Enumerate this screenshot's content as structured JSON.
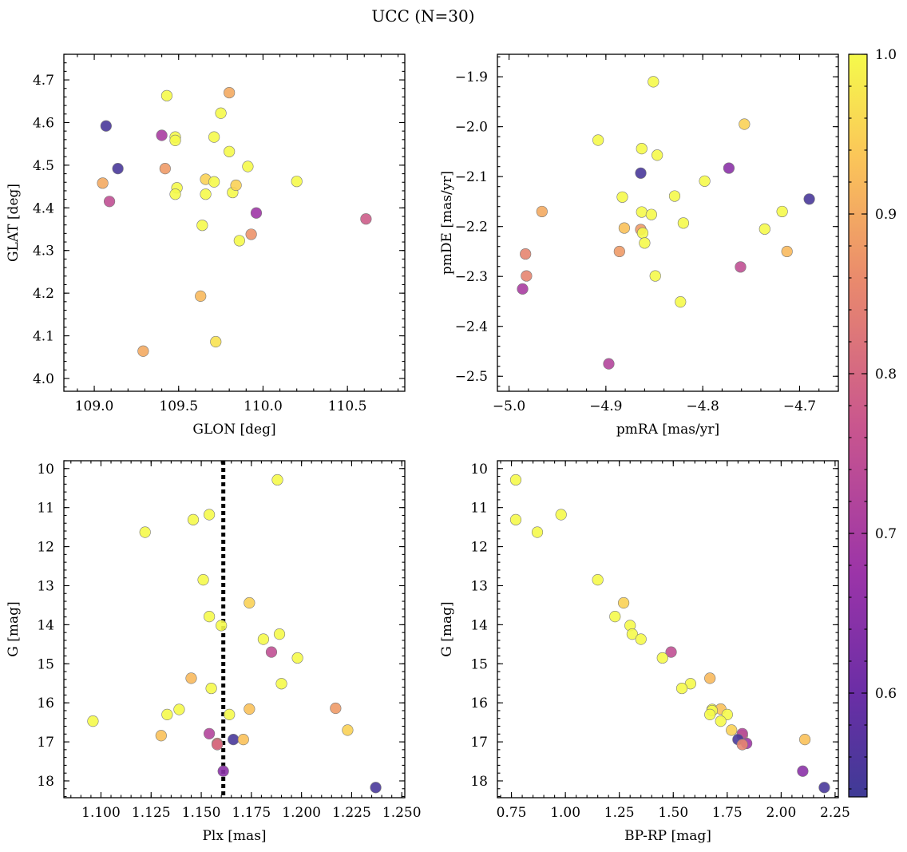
{
  "figure": {
    "title": "UCC (N=30)"
  },
  "colorbar": {
    "range": [
      0.535,
      1.0
    ],
    "ticks": [
      0.6,
      0.7,
      0.8,
      0.9,
      1.0
    ],
    "tick_labels": [
      "0.6",
      "0.7",
      "0.8",
      "0.9",
      "1.0"
    ],
    "colormap": "plasma"
  },
  "chart_data": [
    {
      "type": "scatter",
      "xlabel": "GLON [deg]",
      "ylabel": "GLAT [deg]",
      "xlim": [
        108.82,
        110.84
      ],
      "ylim": [
        3.97,
        4.76
      ],
      "invert_y": false,
      "xticks": [
        109.0,
        109.5,
        110.0,
        110.5
      ],
      "xtick_labels": [
        "109.0",
        "109.5",
        "110.0",
        "110.5"
      ],
      "yticks": [
        4.0,
        4.1,
        4.2,
        4.3,
        4.4,
        4.5,
        4.6,
        4.7
      ],
      "ytick_labels": [
        "4.0",
        "4.1",
        "4.2",
        "4.3",
        "4.4",
        "4.5",
        "4.6",
        "4.7"
      ],
      "points": [
        {
          "x": 109.07,
          "y": 4.592,
          "c": 0.55
        },
        {
          "x": 109.14,
          "y": 4.492,
          "c": 0.55
        },
        {
          "x": 109.05,
          "y": 4.458,
          "c": 0.9
        },
        {
          "x": 109.09,
          "y": 4.415,
          "c": 0.75
        },
        {
          "x": 109.4,
          "y": 4.57,
          "c": 0.7
        },
        {
          "x": 109.42,
          "y": 4.492,
          "c": 0.88
        },
        {
          "x": 109.43,
          "y": 4.663,
          "c": 1.0
        },
        {
          "x": 109.48,
          "y": 4.566,
          "c": 1.0
        },
        {
          "x": 109.48,
          "y": 4.558,
          "c": 1.0
        },
        {
          "x": 109.49,
          "y": 4.447,
          "c": 1.0
        },
        {
          "x": 109.48,
          "y": 4.432,
          "c": 1.0
        },
        {
          "x": 109.64,
          "y": 4.359,
          "c": 1.0
        },
        {
          "x": 109.63,
          "y": 4.193,
          "c": 0.92
        },
        {
          "x": 109.29,
          "y": 4.064,
          "c": 0.9
        },
        {
          "x": 109.66,
          "y": 4.467,
          "c": 0.95
        },
        {
          "x": 109.66,
          "y": 4.432,
          "c": 1.0
        },
        {
          "x": 109.71,
          "y": 4.566,
          "c": 1.0
        },
        {
          "x": 109.71,
          "y": 4.461,
          "c": 1.0
        },
        {
          "x": 109.72,
          "y": 4.086,
          "c": 0.97
        },
        {
          "x": 109.75,
          "y": 4.622,
          "c": 1.0
        },
        {
          "x": 109.8,
          "y": 4.67,
          "c": 0.9
        },
        {
          "x": 109.8,
          "y": 4.532,
          "c": 1.0
        },
        {
          "x": 109.82,
          "y": 4.436,
          "c": 1.0
        },
        {
          "x": 109.84,
          "y": 4.453,
          "c": 0.95
        },
        {
          "x": 109.86,
          "y": 4.323,
          "c": 1.0
        },
        {
          "x": 109.91,
          "y": 4.497,
          "c": 1.0
        },
        {
          "x": 109.93,
          "y": 4.338,
          "c": 0.87
        },
        {
          "x": 109.96,
          "y": 4.388,
          "c": 0.68
        },
        {
          "x": 110.2,
          "y": 4.462,
          "c": 1.0
        },
        {
          "x": 110.61,
          "y": 4.374,
          "c": 0.78
        }
      ]
    },
    {
      "type": "scatter",
      "xlabel": "pmRA [mas/yr]",
      "ylabel": "pmDE [mas/yr]",
      "xlim": [
        -5.012,
        -4.66
      ],
      "ylim": [
        -2.53,
        -1.855
      ],
      "invert_y": false,
      "xticks": [
        -5.0,
        -4.9,
        -4.8,
        -4.7
      ],
      "xtick_labels": [
        "−5.0",
        "−4.9",
        "−4.8",
        "−4.7"
      ],
      "yticks": [
        -2.5,
        -2.4,
        -2.3,
        -2.2,
        -2.1,
        -2.0,
        -1.9
      ],
      "ytick_labels": [
        "−2.5",
        "−2.4",
        "−2.3",
        "−2.2",
        "−2.1",
        "−2.0",
        "−1.9"
      ],
      "points": [
        {
          "x": -4.851,
          "y": -1.91,
          "c": 1.0
        },
        {
          "x": -4.757,
          "y": -1.995,
          "c": 0.95
        },
        {
          "x": -4.908,
          "y": -2.027,
          "c": 1.0
        },
        {
          "x": -4.863,
          "y": -2.044,
          "c": 1.0
        },
        {
          "x": -4.847,
          "y": -2.057,
          "c": 1.0
        },
        {
          "x": -4.864,
          "y": -2.093,
          "c": 0.55
        },
        {
          "x": -4.773,
          "y": -2.083,
          "c": 0.65
        },
        {
          "x": -4.798,
          "y": -2.109,
          "c": 1.0
        },
        {
          "x": -4.69,
          "y": -2.145,
          "c": 0.55
        },
        {
          "x": -4.883,
          "y": -2.141,
          "c": 1.0
        },
        {
          "x": -4.829,
          "y": -2.139,
          "c": 1.0
        },
        {
          "x": -4.966,
          "y": -2.17,
          "c": 0.9
        },
        {
          "x": -4.863,
          "y": -2.171,
          "c": 1.0
        },
        {
          "x": -4.853,
          "y": -2.176,
          "c": 1.0
        },
        {
          "x": -4.718,
          "y": -2.17,
          "c": 1.0
        },
        {
          "x": -4.82,
          "y": -2.193,
          "c": 1.0
        },
        {
          "x": -4.881,
          "y": -2.203,
          "c": 0.93
        },
        {
          "x": -4.864,
          "y": -2.206,
          "c": 0.88
        },
        {
          "x": -4.862,
          "y": -2.213,
          "c": 1.0
        },
        {
          "x": -4.86,
          "y": -2.233,
          "c": 1.0
        },
        {
          "x": -4.736,
          "y": -2.205,
          "c": 1.0
        },
        {
          "x": -4.886,
          "y": -2.25,
          "c": 0.88
        },
        {
          "x": -4.713,
          "y": -2.25,
          "c": 0.92
        },
        {
          "x": -4.983,
          "y": -2.255,
          "c": 0.85
        },
        {
          "x": -4.761,
          "y": -2.281,
          "c": 0.75
        },
        {
          "x": -4.982,
          "y": -2.299,
          "c": 0.85
        },
        {
          "x": -4.849,
          "y": -2.299,
          "c": 1.0
        },
        {
          "x": -4.986,
          "y": -2.325,
          "c": 0.7
        },
        {
          "x": -4.823,
          "y": -2.351,
          "c": 1.0
        },
        {
          "x": -4.897,
          "y": -2.475,
          "c": 0.72
        }
      ]
    },
    {
      "type": "scatter",
      "xlabel": "Plx [mas]",
      "ylabel": "G [mag]",
      "xlim": [
        1.0815,
        1.2515
      ],
      "ylim": [
        18.43,
        9.8
      ],
      "invert_y": true,
      "vline": {
        "x": 1.161,
        "style": "dotted"
      },
      "xticks": [
        1.1,
        1.125,
        1.15,
        1.175,
        1.2,
        1.225,
        1.25
      ],
      "xtick_labels": [
        "1.100",
        "1.125",
        "1.150",
        "1.175",
        "1.200",
        "1.225",
        "1.250"
      ],
      "yticks": [
        10,
        11,
        12,
        13,
        14,
        15,
        16,
        17,
        18
      ],
      "ytick_labels": [
        "10",
        "11",
        "12",
        "13",
        "14",
        "15",
        "16",
        "17",
        "18"
      ],
      "points": [
        {
          "x": 1.188,
          "y": 10.29,
          "c": 1.0
        },
        {
          "x": 1.146,
          "y": 11.31,
          "c": 1.0
        },
        {
          "x": 1.154,
          "y": 11.18,
          "c": 1.0
        },
        {
          "x": 1.122,
          "y": 11.63,
          "c": 1.0
        },
        {
          "x": 1.151,
          "y": 12.85,
          "c": 1.0
        },
        {
          "x": 1.174,
          "y": 13.44,
          "c": 0.95
        },
        {
          "x": 1.154,
          "y": 13.79,
          "c": 1.0
        },
        {
          "x": 1.16,
          "y": 14.02,
          "c": 1.0
        },
        {
          "x": 1.189,
          "y": 14.24,
          "c": 1.0
        },
        {
          "x": 1.181,
          "y": 14.37,
          "c": 1.0
        },
        {
          "x": 1.185,
          "y": 14.7,
          "c": 0.75
        },
        {
          "x": 1.198,
          "y": 14.85,
          "c": 1.0
        },
        {
          "x": 1.145,
          "y": 15.37,
          "c": 0.92
        },
        {
          "x": 1.19,
          "y": 15.51,
          "c": 1.0
        },
        {
          "x": 1.155,
          "y": 15.63,
          "c": 1.0
        },
        {
          "x": 1.139,
          "y": 16.17,
          "c": 1.0
        },
        {
          "x": 1.174,
          "y": 16.16,
          "c": 0.93
        },
        {
          "x": 1.217,
          "y": 16.14,
          "c": 0.88
        },
        {
          "x": 1.133,
          "y": 16.3,
          "c": 1.0
        },
        {
          "x": 1.164,
          "y": 16.3,
          "c": 1.0
        },
        {
          "x": 1.096,
          "y": 16.47,
          "c": 1.0
        },
        {
          "x": 1.223,
          "y": 16.7,
          "c": 0.95
        },
        {
          "x": 1.13,
          "y": 16.84,
          "c": 0.93
        },
        {
          "x": 1.154,
          "y": 16.79,
          "c": 0.72
        },
        {
          "x": 1.166,
          "y": 16.94,
          "c": 0.55
        },
        {
          "x": 1.171,
          "y": 16.94,
          "c": 0.93
        },
        {
          "x": 1.158,
          "y": 17.04,
          "c": 0.85
        },
        {
          "x": 1.158,
          "y": 17.07,
          "c": 0.8
        },
        {
          "x": 1.161,
          "y": 17.75,
          "c": 0.65
        },
        {
          "x": 1.237,
          "y": 18.17,
          "c": 0.55
        }
      ]
    },
    {
      "type": "scatter",
      "xlabel": "BP-RP [mag]",
      "ylabel": "G [mag]",
      "xlim": [
        0.685,
        2.265
      ],
      "ylim": [
        18.43,
        9.8
      ],
      "invert_y": true,
      "xticks": [
        0.75,
        1.0,
        1.25,
        1.5,
        1.75,
        2.0,
        2.25
      ],
      "xtick_labels": [
        "0.75",
        "1.00",
        "1.25",
        "1.50",
        "1.75",
        "2.00",
        "2.25"
      ],
      "yticks": [
        10,
        11,
        12,
        13,
        14,
        15,
        16,
        17,
        18
      ],
      "ytick_labels": [
        "10",
        "11",
        "12",
        "13",
        "14",
        "15",
        "16",
        "17",
        "18"
      ],
      "points": [
        {
          "x": 0.77,
          "y": 10.29,
          "c": 1.0
        },
        {
          "x": 0.77,
          "y": 11.31,
          "c": 1.0
        },
        {
          "x": 0.87,
          "y": 11.63,
          "c": 1.0
        },
        {
          "x": 0.98,
          "y": 11.18,
          "c": 1.0
        },
        {
          "x": 1.15,
          "y": 12.85,
          "c": 1.0
        },
        {
          "x": 1.27,
          "y": 13.44,
          "c": 0.95
        },
        {
          "x": 1.23,
          "y": 13.79,
          "c": 1.0
        },
        {
          "x": 1.3,
          "y": 14.02,
          "c": 1.0
        },
        {
          "x": 1.31,
          "y": 14.24,
          "c": 1.0
        },
        {
          "x": 1.35,
          "y": 14.37,
          "c": 1.0
        },
        {
          "x": 1.49,
          "y": 14.7,
          "c": 0.75
        },
        {
          "x": 1.45,
          "y": 14.85,
          "c": 1.0
        },
        {
          "x": 1.67,
          "y": 15.37,
          "c": 0.92
        },
        {
          "x": 1.58,
          "y": 15.51,
          "c": 1.0
        },
        {
          "x": 1.54,
          "y": 15.63,
          "c": 1.0
        },
        {
          "x": 1.68,
          "y": 16.17,
          "c": 1.0
        },
        {
          "x": 1.72,
          "y": 16.16,
          "c": 0.93
        },
        {
          "x": 1.68,
          "y": 16.2,
          "c": 1.0
        },
        {
          "x": 1.67,
          "y": 16.3,
          "c": 1.0
        },
        {
          "x": 1.75,
          "y": 16.3,
          "c": 1.0
        },
        {
          "x": 1.72,
          "y": 16.47,
          "c": 1.0
        },
        {
          "x": 1.77,
          "y": 16.7,
          "c": 0.95
        },
        {
          "x": 1.82,
          "y": 16.84,
          "c": 0.93
        },
        {
          "x": 1.82,
          "y": 16.79,
          "c": 0.72
        },
        {
          "x": 1.8,
          "y": 16.94,
          "c": 0.55
        },
        {
          "x": 2.11,
          "y": 16.94,
          "c": 0.93
        },
        {
          "x": 1.84,
          "y": 17.04,
          "c": 0.68
        },
        {
          "x": 1.82,
          "y": 17.07,
          "c": 0.85
        },
        {
          "x": 2.1,
          "y": 17.75,
          "c": 0.65
        },
        {
          "x": 2.2,
          "y": 18.17,
          "c": 0.55
        }
      ]
    }
  ]
}
